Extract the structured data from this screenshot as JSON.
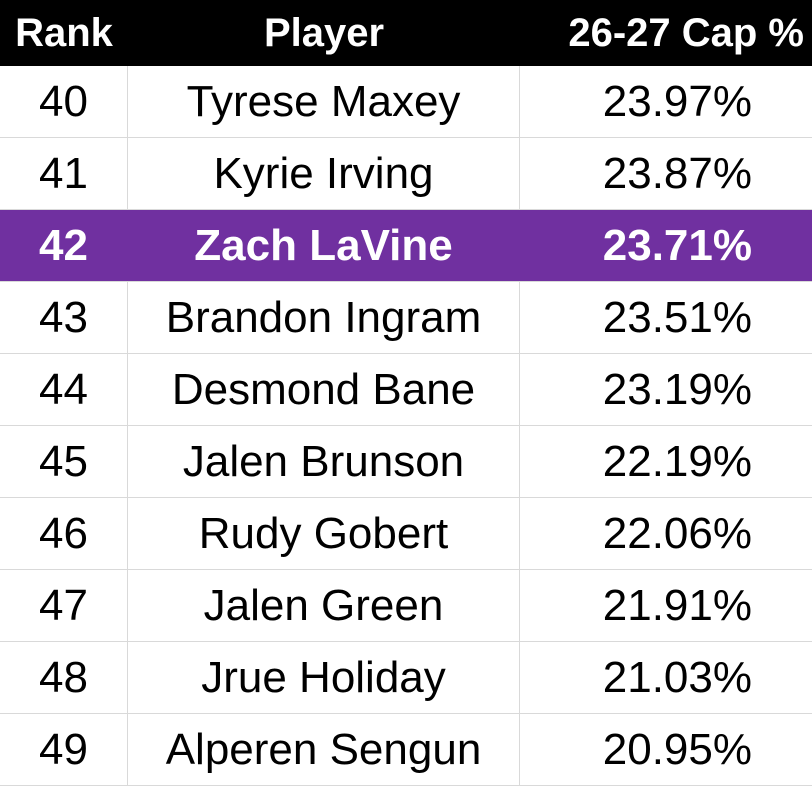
{
  "chart_data": {
    "type": "table",
    "columns": [
      "Rank",
      "Player",
      "26-27 Cap %"
    ],
    "highlight_rank": 42,
    "highlight_color": "#7030a0",
    "header_color": "#000000",
    "rows": [
      {
        "rank": "40",
        "player": "Tyrese Maxey",
        "cap": "23.97%"
      },
      {
        "rank": "41",
        "player": "Kyrie Irving",
        "cap": "23.87%"
      },
      {
        "rank": "42",
        "player": "Zach LaVine",
        "cap": "23.71%"
      },
      {
        "rank": "43",
        "player": "Brandon Ingram",
        "cap": "23.51%"
      },
      {
        "rank": "44",
        "player": "Desmond Bane",
        "cap": "23.19%"
      },
      {
        "rank": "45",
        "player": "Jalen Brunson",
        "cap": "22.19%"
      },
      {
        "rank": "46",
        "player": "Rudy Gobert",
        "cap": "22.06%"
      },
      {
        "rank": "47",
        "player": "Jalen Green",
        "cap": "21.91%"
      },
      {
        "rank": "48",
        "player": "Jrue Holiday",
        "cap": "21.03%"
      },
      {
        "rank": "49",
        "player": "Alperen Sengun",
        "cap": "20.95%"
      }
    ]
  }
}
